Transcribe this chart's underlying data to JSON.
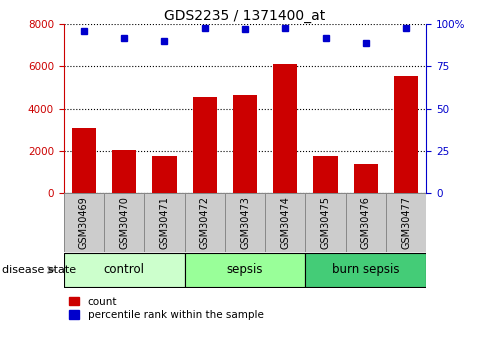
{
  "title": "GDS2235 / 1371400_at",
  "samples": [
    "GSM30469",
    "GSM30470",
    "GSM30471",
    "GSM30472",
    "GSM30473",
    "GSM30474",
    "GSM30475",
    "GSM30476",
    "GSM30477"
  ],
  "counts": [
    3100,
    2050,
    1750,
    4550,
    4650,
    6100,
    1750,
    1400,
    5550
  ],
  "percentiles": [
    96,
    92,
    90,
    98,
    97,
    98,
    92,
    89,
    98
  ],
  "bar_color": "#cc0000",
  "dot_color": "#0000cc",
  "groups": [
    {
      "label": "control",
      "start": 0,
      "end": 3,
      "color": "#ccffcc"
    },
    {
      "label": "sepsis",
      "start": 3,
      "end": 6,
      "color": "#99ff99"
    },
    {
      "label": "burn sepsis",
      "start": 6,
      "end": 9,
      "color": "#44cc77"
    }
  ],
  "ylim_left": [
    0,
    8000
  ],
  "ylim_right": [
    0,
    100
  ],
  "yticks_left": [
    0,
    2000,
    4000,
    6000,
    8000
  ],
  "yticks_right": [
    0,
    25,
    50,
    75,
    100
  ],
  "left_axis_color": "#cc0000",
  "right_axis_color": "#0000cc",
  "legend_count_label": "count",
  "legend_pct_label": "percentile rank within the sample",
  "disease_state_label": "disease state",
  "sample_box_color": "#cccccc",
  "title_fontsize": 10,
  "tick_fontsize": 7.5,
  "label_fontsize": 7,
  "group_fontsize": 8.5,
  "legend_fontsize": 7.5,
  "disease_state_fontsize": 8
}
